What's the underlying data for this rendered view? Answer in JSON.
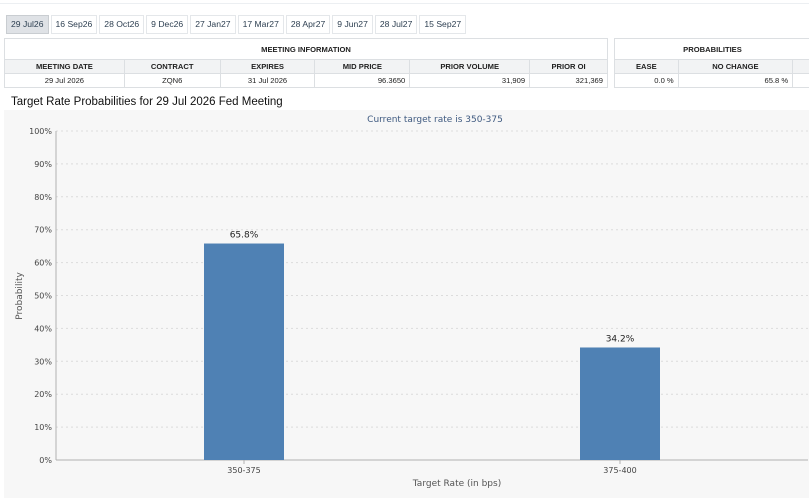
{
  "tabs": [
    "29 Jul26",
    "16 Sep26",
    "28 Oct26",
    "9 Dec26",
    "27 Jan27",
    "17 Mar27",
    "28 Apr27",
    "9 Jun27",
    "28 Jul27",
    "15 Sep27"
  ],
  "active_tab": "29 Jul26",
  "meeting_info": {
    "group_label": "MEETING INFORMATION",
    "headers": [
      "MEETING DATE",
      "CONTRACT",
      "EXPIRES",
      "MID PRICE",
      "PRIOR VOLUME",
      "PRIOR OI"
    ],
    "row": [
      "29 Jul 2026",
      "ZQN6",
      "31 Jul 2026",
      "96.3650",
      "31,909",
      "321,369"
    ]
  },
  "probabilities": {
    "group_label": "PROBABILITIES",
    "headers": [
      "EASE",
      "NO CHANGE"
    ],
    "row": [
      "0.0 %",
      "65.8 %"
    ]
  },
  "chart_title": "Target Rate Probabilities for 29 Jul 2026 Fed Meeting",
  "colors": {
    "bar": "#4f81b4",
    "tab_active_bg": "#dfe2e6",
    "header_bg": "#f2f3f4"
  },
  "chart_data": {
    "type": "bar",
    "subtitle": "Current target rate is 350-375",
    "xlabel": "Target Rate (in bps)",
    "ylabel": "Probability",
    "categories": [
      "350-375",
      "375-400"
    ],
    "values": [
      65.8,
      34.2
    ],
    "data_labels": [
      "65.8%",
      "34.2%"
    ],
    "ylim": [
      0,
      100
    ],
    "yticks": [
      "0%",
      "10%",
      "20%",
      "30%",
      "40%",
      "50%",
      "60%",
      "70%",
      "80%",
      "90%",
      "100%"
    ],
    "grid": true
  }
}
